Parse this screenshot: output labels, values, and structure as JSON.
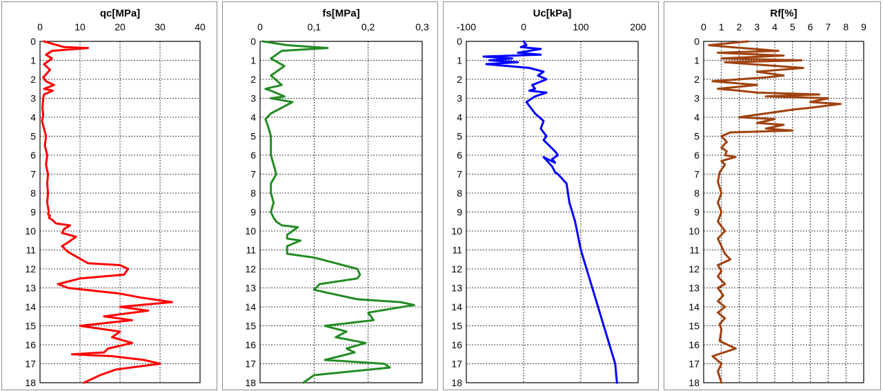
{
  "chart_data": [
    {
      "type": "line",
      "title": "qc[MPa]",
      "color": "#ff0000",
      "xlim": [
        0,
        40
      ],
      "xticks": [
        0,
        10,
        20,
        30,
        40
      ],
      "xtick_labels": [
        "0",
        "10",
        "20",
        "30",
        "40"
      ],
      "ylim": [
        0,
        18
      ],
      "yticks": [
        0,
        1,
        2,
        3,
        4,
        5,
        6,
        7,
        8,
        9,
        10,
        11,
        12,
        13,
        14,
        15,
        16,
        17,
        18
      ],
      "ytick_labels": [
        "0",
        "1",
        "2",
        "3",
        "4",
        "5",
        "6",
        "7",
        "8",
        "9",
        "10",
        "11",
        "12",
        "13",
        "14",
        "15",
        "16",
        "17",
        "18"
      ],
      "grid": true,
      "series": [
        {
          "name": "qc",
          "x": [
            1.0,
            6.0,
            12.0,
            3.0,
            1.5,
            3.0,
            1.0,
            2.5,
            0.8,
            1.5,
            3.5,
            1.0,
            3.2,
            1.0,
            0.8,
            0.6,
            0.8,
            0.5,
            1.0,
            1.5,
            1.2,
            1.8,
            1.5,
            2.0,
            1.8,
            2.0,
            1.8,
            2.2,
            2.0,
            2.5,
            2.2,
            3.0,
            4.0,
            7.5,
            6.0,
            5.5,
            9.0,
            7.0,
            5.5,
            7.0,
            12.0,
            20.0,
            22.0,
            21.0,
            10.0,
            4.5,
            7.0,
            20.0,
            25.0,
            33.0,
            20.0,
            27.0,
            16.0,
            23.0,
            10.0,
            20.0,
            18.0,
            23.0,
            17.0,
            16.0,
            8.0,
            18.0,
            26.0,
            30.0,
            19.0,
            15.0,
            11.0
          ],
          "y": [
            0.0,
            0.3,
            0.35,
            0.5,
            0.7,
            0.9,
            1.2,
            1.5,
            1.9,
            2.1,
            2.3,
            2.5,
            2.6,
            2.8,
            3.0,
            3.5,
            3.9,
            4.2,
            4.6,
            5.0,
            5.5,
            6.0,
            6.5,
            7.0,
            7.5,
            8.0,
            8.5,
            9.0,
            9.1,
            9.2,
            9.3,
            9.4,
            9.6,
            9.7,
            9.9,
            10.1,
            10.3,
            10.6,
            10.8,
            11.1,
            11.7,
            11.8,
            12.0,
            12.3,
            12.5,
            12.8,
            13.0,
            13.3,
            13.5,
            13.75,
            14.0,
            14.2,
            14.5,
            14.7,
            15.0,
            15.3,
            15.6,
            15.9,
            16.2,
            16.4,
            16.5,
            16.6,
            16.8,
            17.0,
            17.3,
            17.6,
            18.0
          ]
        }
      ]
    },
    {
      "type": "line",
      "title": "fs[MPa]",
      "color": "#228b22",
      "xlim": [
        0,
        0.3
      ],
      "xticks": [
        0,
        0.1,
        0.2,
        0.3
      ],
      "xtick_labels": [
        "0",
        "0,1",
        "0,2",
        "0,3"
      ],
      "ylim": [
        0,
        18
      ],
      "yticks": [
        0,
        1,
        2,
        3,
        4,
        5,
        6,
        7,
        8,
        9,
        10,
        11,
        12,
        13,
        14,
        15,
        16,
        17,
        18
      ],
      "ytick_labels": [
        "0",
        "1",
        "2",
        "3",
        "4",
        "5",
        "6",
        "7",
        "8",
        "9",
        "10",
        "11",
        "12",
        "13",
        "14",
        "15",
        "16",
        "17",
        "18"
      ],
      "grid": true,
      "series": [
        {
          "name": "fs",
          "x": [
            0.005,
            0.05,
            0.125,
            0.04,
            0.02,
            0.045,
            0.02,
            0.04,
            0.01,
            0.02,
            0.045,
            0.02,
            0.06,
            0.02,
            0.01,
            0.015,
            0.02,
            0.02,
            0.025,
            0.03,
            0.02,
            0.02,
            0.025,
            0.02,
            0.025,
            0.03,
            0.04,
            0.07,
            0.05,
            0.05,
            0.075,
            0.05,
            0.05,
            0.1,
            0.14,
            0.18,
            0.185,
            0.18,
            0.11,
            0.1,
            0.18,
            0.26,
            0.285,
            0.2,
            0.21,
            0.12,
            0.16,
            0.14,
            0.195,
            0.16,
            0.175,
            0.12,
            0.23,
            0.24,
            0.1,
            0.08
          ],
          "y": [
            0.0,
            0.2,
            0.35,
            0.5,
            0.9,
            1.3,
            1.8,
            2.3,
            2.5,
            2.6,
            2.9,
            3.0,
            3.2,
            3.8,
            4.1,
            4.5,
            5.0,
            6.0,
            6.5,
            7.0,
            7.5,
            8.0,
            8.5,
            9.0,
            9.3,
            9.5,
            9.7,
            9.8,
            10.2,
            10.4,
            10.5,
            10.8,
            11.2,
            11.4,
            11.7,
            12.0,
            12.3,
            12.5,
            12.8,
            13.1,
            13.6,
            13.75,
            13.9,
            14.3,
            14.7,
            15.0,
            15.3,
            15.6,
            15.9,
            16.2,
            16.4,
            16.8,
            17.0,
            17.2,
            17.6,
            18.0
          ]
        }
      ]
    },
    {
      "type": "line",
      "title": "Uc[kPa]",
      "color": "#0000ff",
      "xlim": [
        -100,
        200
      ],
      "xticks": [
        -100,
        0,
        100,
        200
      ],
      "xtick_labels": [
        "-100",
        "0",
        "100",
        "200"
      ],
      "ylim": [
        0,
        18
      ],
      "yticks": [
        0,
        1,
        2,
        3,
        4,
        5,
        6,
        7,
        8,
        9,
        10,
        11,
        12,
        13,
        14,
        15,
        16,
        17,
        18
      ],
      "ytick_labels": [
        "0",
        "1",
        "2",
        "3",
        "4",
        "5",
        "6",
        "7",
        "8",
        "9",
        "10",
        "11",
        "12",
        "13",
        "14",
        "15",
        "16",
        "17",
        "18"
      ],
      "grid": true,
      "series": [
        {
          "name": "Uc",
          "x": [
            0,
            5,
            -5,
            30,
            -10,
            30,
            -70,
            -20,
            -60,
            -10,
            -65,
            10,
            35,
            25,
            40,
            15,
            20,
            10,
            40,
            20,
            5,
            20,
            35,
            30,
            40,
            35,
            45,
            55,
            60,
            50,
            55,
            35,
            50,
            55,
            60,
            75,
            80,
            90,
            100,
            110,
            120,
            130,
            145,
            160,
            163
          ],
          "y": [
            0.0,
            0.2,
            0.3,
            0.4,
            0.6,
            0.7,
            0.8,
            0.9,
            1.0,
            1.1,
            1.2,
            1.4,
            1.6,
            1.8,
            2.0,
            2.3,
            2.5,
            2.6,
            2.7,
            2.9,
            3.2,
            3.8,
            4.2,
            4.6,
            5.0,
            5.2,
            5.5,
            5.8,
            6.0,
            6.2,
            6.4,
            6.1,
            6.6,
            6.9,
            7.0,
            7.5,
            8.5,
            9.5,
            11.0,
            12.0,
            13.0,
            14.0,
            15.5,
            17.0,
            18.0
          ]
        }
      ]
    },
    {
      "type": "line",
      "title": "Rf[%]",
      "color": "#a0420f",
      "xlim": [
        0,
        9
      ],
      "xticks": [
        0,
        1,
        2,
        3,
        4,
        5,
        6,
        7,
        8,
        9
      ],
      "xtick_labels": [
        "0",
        "1",
        "2",
        "3",
        "4",
        "5",
        "6",
        "7",
        "8",
        "9"
      ],
      "ylim": [
        0,
        18
      ],
      "yticks": [
        0,
        1,
        2,
        3,
        4,
        5,
        6,
        7,
        8,
        9,
        10,
        11,
        12,
        13,
        14,
        15,
        16,
        17,
        18
      ],
      "ytick_labels": [
        "0",
        "1",
        "2",
        "3",
        "4",
        "5",
        "6",
        "7",
        "8",
        "9",
        "10",
        "11",
        "12",
        "13",
        "14",
        "15",
        "16",
        "17",
        "18"
      ],
      "grid": true,
      "series": [
        {
          "name": "Rf",
          "x": [
            2.5,
            0.3,
            1.5,
            4.2,
            0.8,
            4.5,
            1.0,
            5.5,
            1.2,
            5.6,
            3.0,
            4.5,
            3.5,
            0.5,
            3.0,
            0.8,
            2.0,
            3.0,
            6.5,
            3.5,
            7.0,
            6.0,
            7.7,
            6.0,
            5.0,
            2.0,
            4.0,
            3.0,
            4.5,
            3.5,
            5.0,
            1.5,
            1.0,
            1.3,
            1.0,
            1.3,
            1.2,
            1.8,
            1.0,
            1.2,
            0.9,
            0.8,
            1.0,
            0.8,
            1.0,
            0.8,
            1.2,
            0.8,
            1.0,
            1.2,
            1.5,
            0.8,
            1.0,
            0.8,
            1.2,
            0.8,
            1.1,
            0.8,
            1.2,
            0.8,
            1.2,
            0.9,
            1.0,
            0.9,
            1.8,
            0.5,
            1.0,
            0.8,
            1.0
          ],
          "y": [
            0.0,
            0.2,
            0.3,
            0.5,
            0.6,
            0.75,
            0.9,
            1.0,
            1.1,
            1.4,
            1.6,
            1.8,
            1.9,
            2.1,
            2.3,
            2.5,
            2.6,
            2.7,
            2.8,
            2.9,
            3.0,
            3.2,
            3.3,
            3.5,
            3.6,
            4.0,
            4.1,
            4.3,
            4.4,
            4.6,
            4.7,
            4.8,
            5.0,
            5.3,
            5.6,
            5.8,
            6.0,
            6.1,
            6.3,
            6.5,
            6.9,
            7.4,
            8.0,
            8.5,
            9.0,
            9.5,
            10.0,
            10.4,
            10.8,
            11.2,
            11.5,
            11.8,
            12.1,
            12.4,
            12.8,
            13.0,
            13.4,
            13.7,
            14.0,
            14.3,
            14.6,
            14.9,
            15.2,
            15.8,
            16.2,
            16.6,
            17.0,
            17.4,
            18.0
          ]
        }
      ]
    }
  ]
}
